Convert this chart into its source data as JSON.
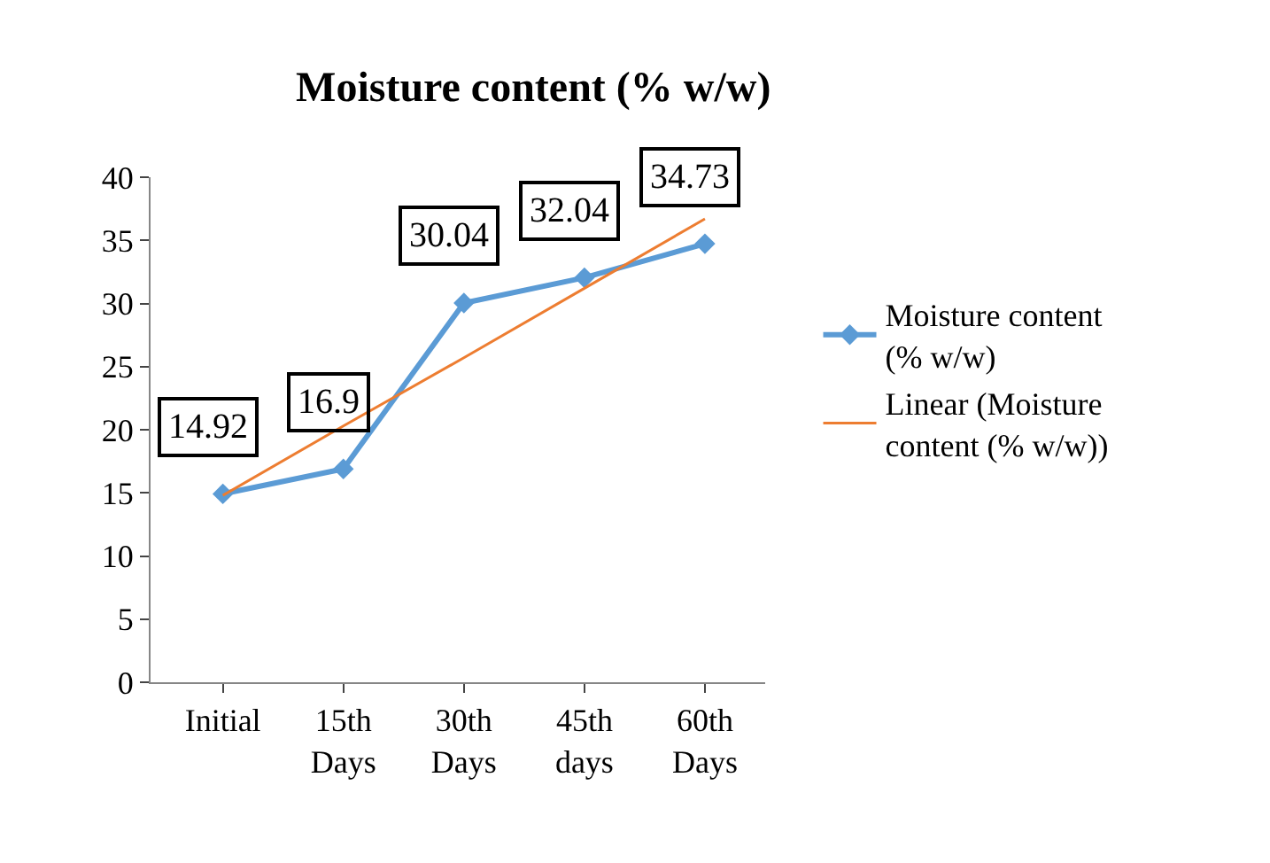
{
  "chart_data": {
    "type": "line",
    "title": "Moisture content (% w/w)",
    "categories": [
      "Initial",
      "15th Days",
      "30th Days",
      "45th days",
      "60th Days"
    ],
    "series": [
      {
        "name": "Moisture content (% w/w)",
        "color": "#5b9bd5",
        "marker": "diamond",
        "values": [
          14.92,
          16.9,
          30.04,
          32.04,
          34.73
        ],
        "value_labels": [
          "14.92",
          "16.9",
          "30.04",
          "32.04",
          "34.73"
        ]
      },
      {
        "name": "Linear (Moisture content (% w/w))",
        "color": "#ed7d31",
        "marker": "none",
        "values": [
          14.8,
          20.3,
          25.7,
          31.2,
          36.7
        ]
      }
    ],
    "ylim": [
      0,
      40
    ],
    "yticks": [
      0,
      5,
      10,
      15,
      20,
      25,
      30,
      35,
      40
    ],
    "legend": "right"
  }
}
